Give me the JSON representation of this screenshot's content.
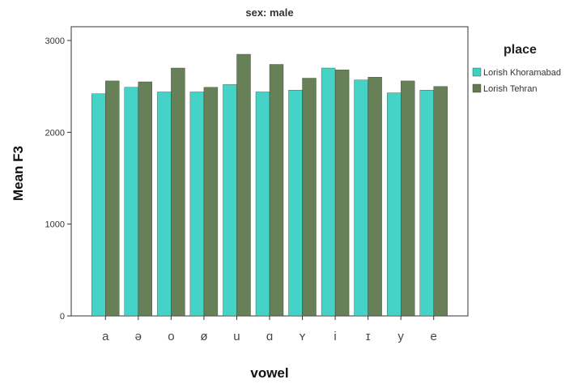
{
  "chart_data": {
    "type": "bar",
    "subtitle": "sex: male",
    "xlabel": "vowel",
    "ylabel": "Mean F3",
    "categories": [
      "a",
      "ə",
      "o",
      "ø",
      "u",
      "ɑ",
      "ʏ",
      "i",
      "ɪ",
      "y",
      "e"
    ],
    "ylim": [
      0,
      3150
    ],
    "yticks": [
      0,
      1000,
      2000,
      3000
    ],
    "legend_title": "place",
    "legend_position": "right",
    "grid": false,
    "series": [
      {
        "name": "Lorish Khoramabad",
        "color": "#3bd1c4",
        "values": [
          2420,
          2490,
          2440,
          2440,
          2520,
          2440,
          2460,
          2700,
          2570,
          2430,
          2460
        ]
      },
      {
        "name": "Lorish Tehran",
        "color": "#5f7a4f",
        "values": [
          2560,
          2550,
          2700,
          2490,
          2850,
          2740,
          2590,
          2680,
          2600,
          2560,
          2500
        ]
      }
    ]
  }
}
